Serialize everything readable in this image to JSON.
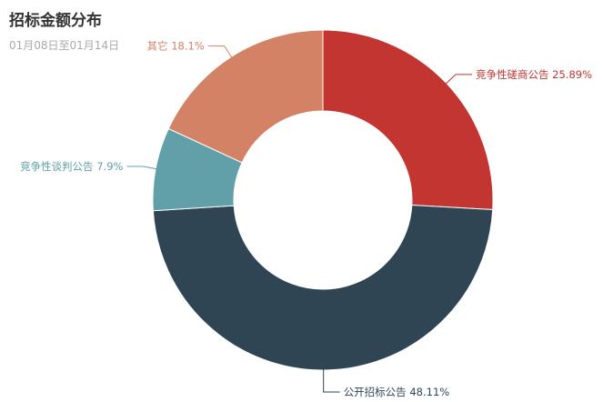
{
  "chart_data": {
    "type": "pie",
    "variant": "donut",
    "title": "招标金额分布",
    "subtitle": "01月08日至01月14日",
    "slices": [
      {
        "name": "竞争性磋商公告",
        "percent": 25.89,
        "label": "竞争性磋商公告 25.89%",
        "color": "#c23531"
      },
      {
        "name": "公开招标公告",
        "percent": 48.11,
        "label": "公开招标公告 48.11%",
        "color": "#2f4554"
      },
      {
        "name": "竞争性谈判公告",
        "percent": 7.9,
        "label": "竞争性谈判公告 7.9%",
        "color": "#61a0a8"
      },
      {
        "name": "其它",
        "percent": 18.1,
        "label": "其它 18.1%",
        "color": "#d48265"
      }
    ],
    "legend": "none"
  }
}
